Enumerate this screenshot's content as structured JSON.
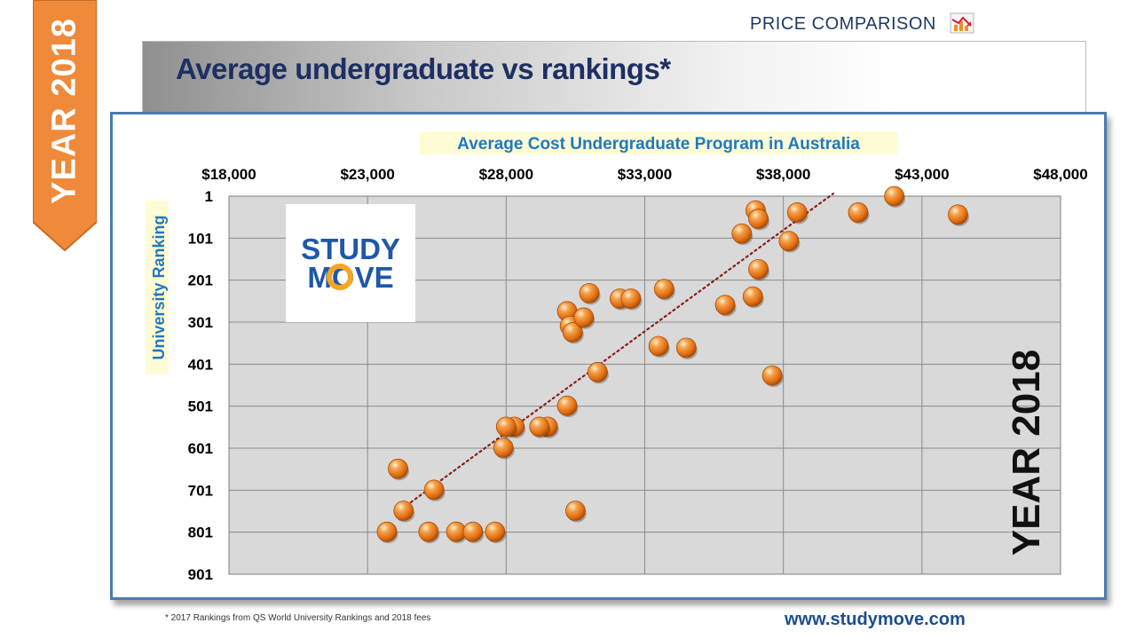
{
  "ribbon": {
    "text": "YEAR 2018",
    "color": "#ef8a3b"
  },
  "header": {
    "price_comparison": "PRICE COMPARISON",
    "price_icon": "chart-arrow-icon",
    "title": "Average undergraduate vs rankings*"
  },
  "logo": {
    "line1": "STUDY",
    "line2": "MOVE"
  },
  "watermark": "YEAR 2018",
  "footnote": "* 2017 Rankings from QS World University Rankings and 2018 fees",
  "website": "www.studymove.com",
  "chart_data": {
    "type": "scatter",
    "title": "Average Cost Undergraduate Program in Australia",
    "xlabel": "Average Cost Undergraduate Program in Australia",
    "ylabel": "University Ranking",
    "x_axis_position": "top",
    "y_axis_reversed": true,
    "xlim": [
      18000,
      48000
    ],
    "ylim": [
      1,
      901
    ],
    "xticks": [
      "$18,000",
      "$23,000",
      "$28,000",
      "$33,000",
      "$38,000",
      "$43,000",
      "$48,000"
    ],
    "yticks": [
      "1",
      "101",
      "201",
      "301",
      "401",
      "501",
      "601",
      "701",
      "801",
      "901"
    ],
    "grid": true,
    "trendline": {
      "style": "dotted",
      "color": "#8b1a1a",
      "from": [
        24100,
        752
      ],
      "to": [
        39800,
        -5
      ]
    },
    "marker_color": "#ee7d1f",
    "points": [
      {
        "x": 24100,
        "y": 650
      },
      {
        "x": 23700,
        "y": 800
      },
      {
        "x": 24300,
        "y": 750
      },
      {
        "x": 25400,
        "y": 700
      },
      {
        "x": 25200,
        "y": 800
      },
      {
        "x": 26200,
        "y": 800
      },
      {
        "x": 26800,
        "y": 800
      },
      {
        "x": 27600,
        "y": 800
      },
      {
        "x": 27900,
        "y": 600
      },
      {
        "x": 28300,
        "y": 550
      },
      {
        "x": 28000,
        "y": 550
      },
      {
        "x": 29500,
        "y": 550
      },
      {
        "x": 29200,
        "y": 550
      },
      {
        "x": 30500,
        "y": 750
      },
      {
        "x": 30200,
        "y": 500
      },
      {
        "x": 30200,
        "y": 275
      },
      {
        "x": 30300,
        "y": 310
      },
      {
        "x": 30400,
        "y": 325
      },
      {
        "x": 30800,
        "y": 290
      },
      {
        "x": 31000,
        "y": 232
      },
      {
        "x": 31300,
        "y": 420
      },
      {
        "x": 32100,
        "y": 245
      },
      {
        "x": 32500,
        "y": 245
      },
      {
        "x": 33700,
        "y": 222
      },
      {
        "x": 33500,
        "y": 358
      },
      {
        "x": 34500,
        "y": 362
      },
      {
        "x": 35900,
        "y": 260
      },
      {
        "x": 36500,
        "y": 90
      },
      {
        "x": 37000,
        "y": 35
      },
      {
        "x": 37100,
        "y": 55
      },
      {
        "x": 36900,
        "y": 240
      },
      {
        "x": 37100,
        "y": 175
      },
      {
        "x": 37600,
        "y": 428
      },
      {
        "x": 38200,
        "y": 108
      },
      {
        "x": 38500,
        "y": 40
      },
      {
        "x": 40700,
        "y": 40
      },
      {
        "x": 42000,
        "y": 1
      },
      {
        "x": 44300,
        "y": 45
      }
    ]
  }
}
